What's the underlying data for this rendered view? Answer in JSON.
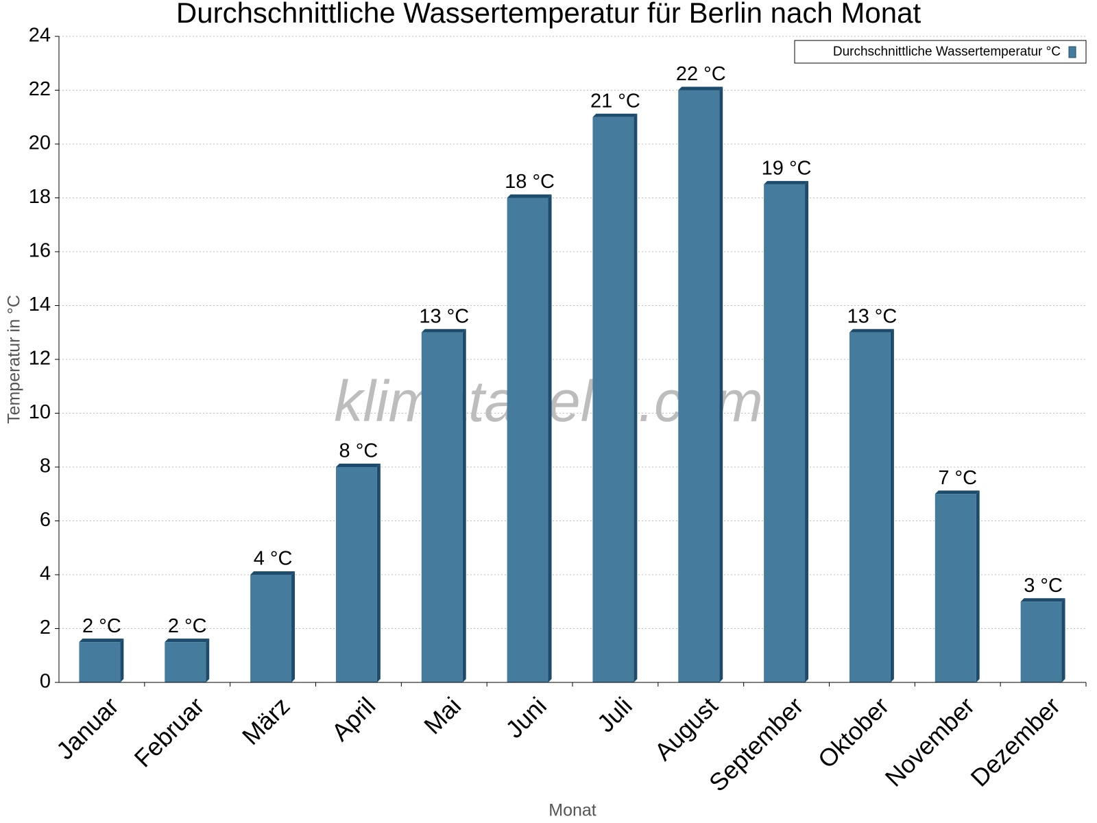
{
  "chart_data": {
    "type": "bar",
    "title": "Durchschnittliche Wassertemperatur für Berlin nach Monat",
    "x_label": "Monat",
    "y_label": "Temperatur in °C",
    "watermark": "klimatabelle.com",
    "categories": [
      "Januar",
      "Februar",
      "März",
      "April",
      "Mai",
      "Juni",
      "Juli",
      "August",
      "September",
      "Oktober",
      "November",
      "Dezember"
    ],
    "series": [
      {
        "name": "Durchschnittliche Wassertemperatur °C",
        "color": "#457b9d",
        "values": [
          1.5,
          1.5,
          4,
          8,
          13,
          18,
          21,
          22,
          18.5,
          13,
          7,
          3
        ],
        "value_labels": [
          "2 °C",
          "2 °C",
          "4 °C",
          "8 °C",
          "13 °C",
          "18 °C",
          "21 °C",
          "22 °C",
          "19 °C",
          "13 °C",
          "7 °C",
          "3 °C"
        ]
      }
    ],
    "ylim": [
      0,
      24
    ],
    "yticks": [
      0,
      2,
      4,
      6,
      8,
      10,
      12,
      14,
      16,
      18,
      20,
      22,
      24
    ],
    "grid": true,
    "legend": "top-right"
  }
}
